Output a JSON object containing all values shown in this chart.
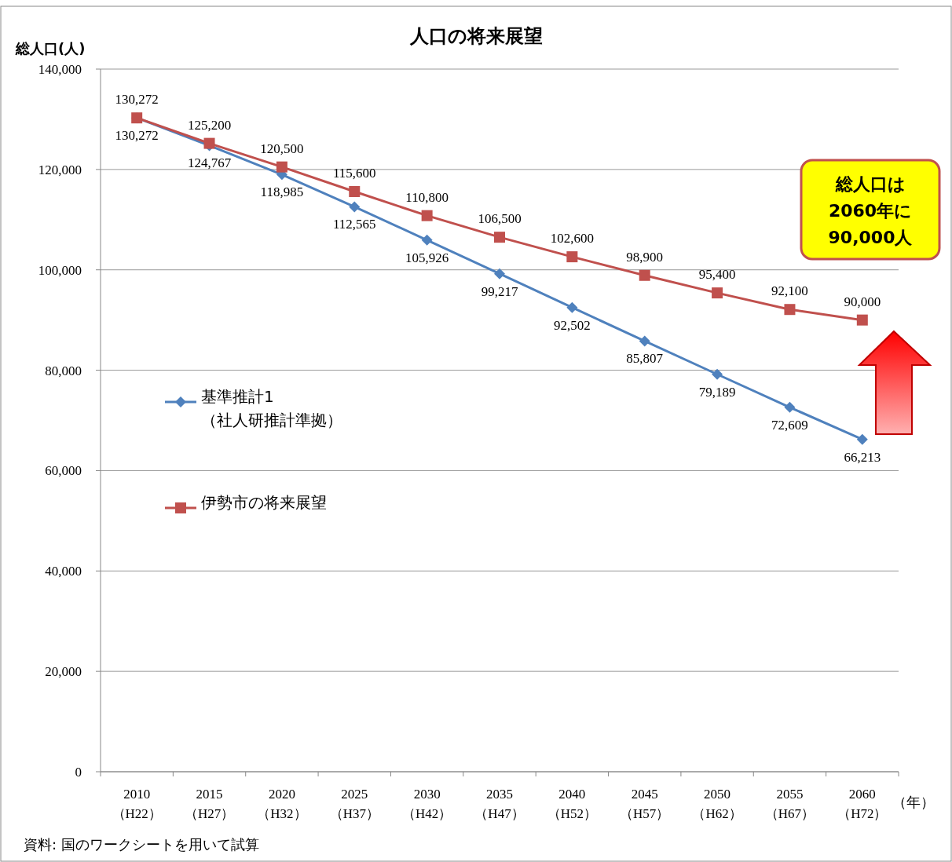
{
  "chart_data": {
    "type": "line",
    "title": "人口の将来展望",
    "ylabel": "総人口(人)",
    "xlabel": "（年）",
    "categories": [
      "2010\n（H22）",
      "2015\n（H27）",
      "2020\n（H32）",
      "2025\n（H37）",
      "2030\n（H42）",
      "2035\n（H47）",
      "2040\n（H52）",
      "2045\n（H57）",
      "2050\n（H62）",
      "2055\n（H67）",
      "2060\n（H72）"
    ],
    "series": [
      {
        "name": "基準推計1\n（社人研推計準拠）",
        "color": "#4f81bd",
        "marker": "diamond",
        "values": [
          130272,
          124767,
          118985,
          112565,
          105926,
          99217,
          92502,
          85807,
          79189,
          72609,
          66213
        ],
        "value_labels": [
          "130,272",
          "124,767",
          "118,985",
          "112,565",
          "105,926",
          "99,217",
          "92,502",
          "85,807",
          "79,189",
          "72,609",
          "66,213"
        ]
      },
      {
        "name": "伊勢市の将来展望",
        "color": "#c0504d",
        "marker": "square",
        "values": [
          130272,
          125200,
          120500,
          115600,
          110800,
          106500,
          102600,
          98900,
          95400,
          92100,
          90000
        ],
        "value_labels": [
          "130,272",
          "125,200",
          "120,500",
          "115,600",
          "110,800",
          "106,500",
          "102,600",
          "98,900",
          "95,400",
          "92,100",
          "90,000"
        ]
      }
    ],
    "ylim": [
      0,
      140000
    ],
    "yticks": [
      {
        "value": 0,
        "label": "0"
      },
      {
        "value": 20000,
        "label": "20,000"
      },
      {
        "value": 40000,
        "label": "40,000"
      },
      {
        "value": 60000,
        "label": "60,000"
      },
      {
        "value": 80000,
        "label": "80,000"
      },
      {
        "value": 100000,
        "label": "100,000"
      },
      {
        "value": 120000,
        "label": "120,000"
      },
      {
        "value": 140000,
        "label": "140,000"
      }
    ],
    "grid": "y",
    "legend": "left",
    "annotations": [
      "総人口は\n2060年に\n90,000人",
      "資料: 国のワークシートを用いて試算"
    ]
  }
}
